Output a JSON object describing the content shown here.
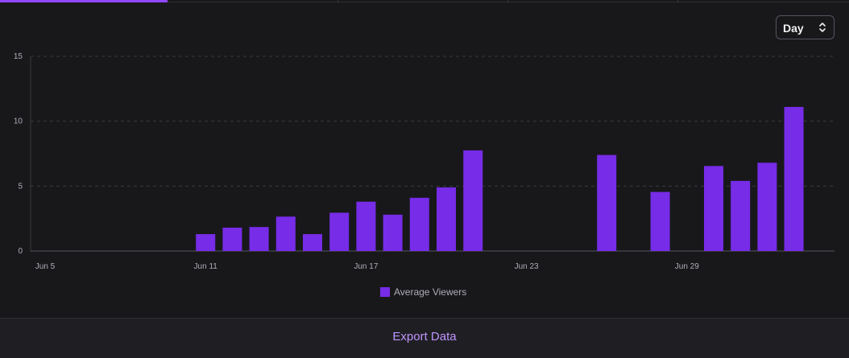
{
  "period_select": {
    "value": "Day"
  },
  "footer": {
    "export_label": "Export Data"
  },
  "colors": {
    "bar": "#772ce8",
    "accent": "#9147ff",
    "export_text": "#bf94ff"
  },
  "chart_data": {
    "type": "bar",
    "x_tick_labels": [
      "Jun 5",
      "Jun 11",
      "Jun 17",
      "Jun 23",
      "Jun 29"
    ],
    "y_ticks": [
      0,
      5,
      10,
      15
    ],
    "ylim": [
      0,
      15
    ],
    "grid": "horizontal dashed",
    "legend_position": "bottom-center",
    "series": [
      {
        "name": "Average Viewers",
        "color": "#772ce8",
        "points": [
          {
            "x": "Jun 11",
            "y": 1.3
          },
          {
            "x": "Jun 12",
            "y": 1.8
          },
          {
            "x": "Jun 13",
            "y": 1.85
          },
          {
            "x": "Jun 14",
            "y": 2.65
          },
          {
            "x": "Jun 15",
            "y": 1.3
          },
          {
            "x": "Jun 16",
            "y": 2.95
          },
          {
            "x": "Jun 17",
            "y": 3.8
          },
          {
            "x": "Jun 18",
            "y": 2.8
          },
          {
            "x": "Jun 19",
            "y": 4.1
          },
          {
            "x": "Jun 20",
            "y": 4.9
          },
          {
            "x": "Jun 21",
            "y": 7.75
          },
          {
            "x": "Jun 26",
            "y": 7.4
          },
          {
            "x": "Jun 28",
            "y": 4.55
          },
          {
            "x": "Jun 30",
            "y": 6.55
          },
          {
            "x": "Jul 1",
            "y": 5.4
          },
          {
            "x": "Jul 2",
            "y": 6.8
          },
          {
            "x": "Jul 3",
            "y": 11.1
          }
        ]
      }
    ]
  }
}
